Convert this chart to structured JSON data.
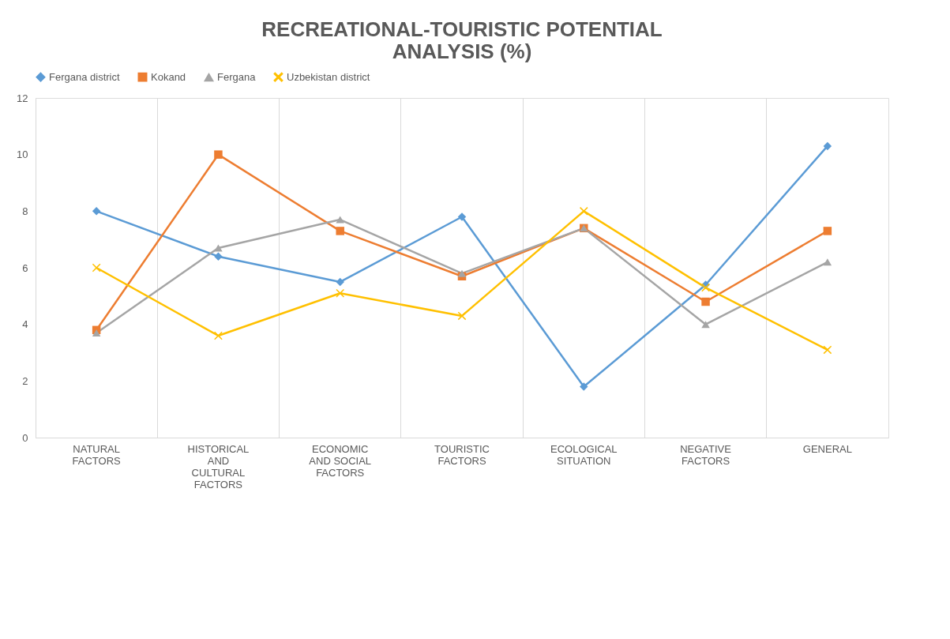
{
  "chart_data": {
    "type": "line",
    "title": "RECREATIONAL-TOURISTIC POTENTIAL ANALYSIS (%)",
    "categories": [
      "NATURAL FACTORS",
      "HISTORICAL AND CULTURAL FACTORS",
      "ECONOMIC AND SOCIAL FACTORS",
      "TOURISTIC FACTORS",
      "ECOLOGICAL SITUATION",
      "NEGATIVE FACTORS",
      "GENERAL"
    ],
    "series": [
      {
        "name": "Fergana district",
        "color": "#5b9bd5",
        "marker": "diamond",
        "values": [
          8.0,
          6.4,
          5.5,
          7.8,
          1.8,
          5.4,
          10.3
        ]
      },
      {
        "name": "Kokand",
        "color": "#ed7d31",
        "marker": "square",
        "values": [
          3.8,
          10.0,
          7.3,
          5.7,
          7.4,
          4.8,
          7.3
        ]
      },
      {
        "name": "Fergana",
        "color": "#a5a5a5",
        "marker": "triangle",
        "values": [
          3.7,
          6.7,
          7.7,
          5.8,
          7.4,
          4.0,
          6.2
        ]
      },
      {
        "name": "Uzbekistan district",
        "color": "#ffc000",
        "marker": "cross",
        "values": [
          6.0,
          3.6,
          5.1,
          4.3,
          8.0,
          5.3,
          3.1
        ]
      }
    ],
    "ylim": [
      0,
      12
    ],
    "yticks": [
      0,
      2,
      4,
      6,
      8,
      10,
      12
    ],
    "grid": "x",
    "legend": "top",
    "line_style": "solid"
  }
}
